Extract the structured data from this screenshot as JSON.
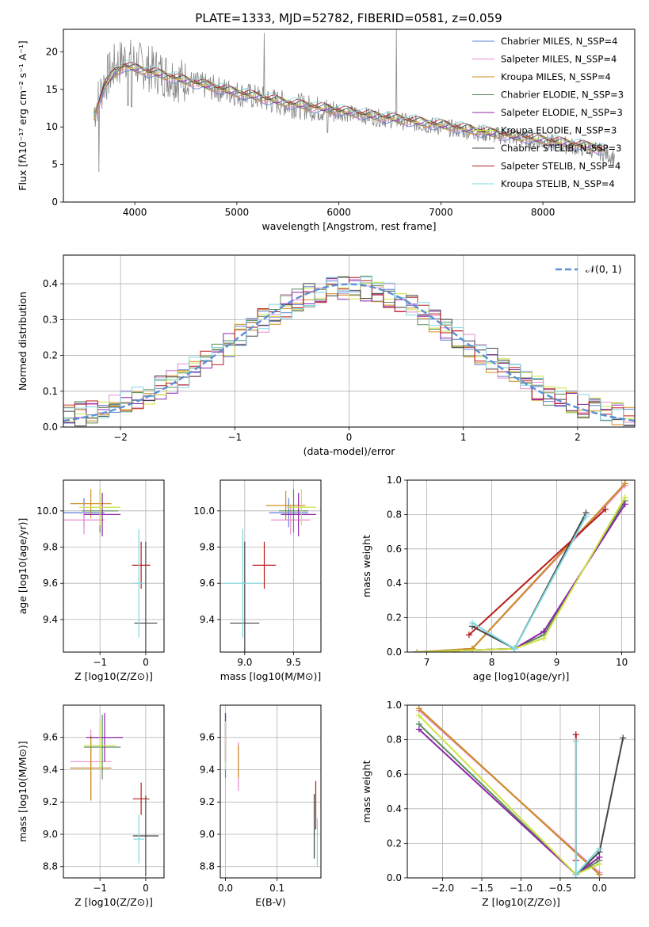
{
  "figure": {
    "title": "PLATE=1333, MJD=52782, FIBERID=0581, z=0.059"
  },
  "chart_data": [
    {
      "id": "spectrum",
      "type": "line",
      "xlabel": "wavelength [Angstrom, rest frame]",
      "ylabel": "Flux [fλ10⁻¹⁷ erg cm⁻² s⁻¹ A⁻¹]",
      "xlim": [
        3300,
        8900
      ],
      "ylim": [
        0,
        23
      ],
      "xticks": [
        4000,
        5000,
        6000,
        7000,
        8000
      ],
      "yticks": [
        0,
        5,
        10,
        15,
        20
      ],
      "grid": false,
      "legend_position": "top-right",
      "observed_envelope": {
        "x": [
          3600,
          3700,
          3800,
          3900,
          4000,
          4200,
          4500,
          5000,
          5500,
          6000,
          6500,
          7000,
          7500,
          8000,
          8500,
          8700
        ],
        "y": [
          12,
          16,
          18,
          19,
          18.5,
          17.5,
          16,
          14.5,
          13,
          12,
          11,
          10,
          9,
          8,
          7,
          6
        ]
      },
      "model_curve": {
        "x": [
          3600,
          3700,
          3800,
          3900,
          4000,
          4200,
          4500,
          5000,
          5500,
          6000,
          6500,
          7000,
          7500,
          8000,
          8500,
          8600
        ],
        "y": [
          11.5,
          15.5,
          17.2,
          18.2,
          17.8,
          17.2,
          16.2,
          14.6,
          13.2,
          12.2,
          11.2,
          10.3,
          9.2,
          8.3,
          7.3,
          6.9
        ]
      },
      "series": [
        {
          "name": "Chabrier MILES, N_SSP=4",
          "color": "#5b7fd4"
        },
        {
          "name": "Salpeter MILES, N_SSP=4",
          "color": "#e98bd1"
        },
        {
          "name": "Kroupa MILES, N_SSP=4",
          "color": "#d08d1e"
        },
        {
          "name": "Chabrier ELODIE, N_SSP=3",
          "color": "#5b8c5a"
        },
        {
          "name": "Salpeter ELODIE, N_SSP=3",
          "color": "#8e24aa"
        },
        {
          "name": "Kroupa ELODIE, N_SSP=3",
          "color": "#cde342"
        },
        {
          "name": "Chabrier STELIB, N_SSP=3",
          "color": "#444444"
        },
        {
          "name": "Salpeter STELIB, N_SSP=4",
          "color": "#b71c1c"
        },
        {
          "name": "Kroupa STELIB, N_SSP=4",
          "color": "#7fd8e0"
        }
      ]
    },
    {
      "id": "residuals",
      "type": "line",
      "xlabel": "(data-model)/error",
      "ylabel": "Normed distribution",
      "xlim": [
        -2.5,
        2.5
      ],
      "ylim": [
        0,
        0.48
      ],
      "xticks": [
        -2,
        -1,
        0,
        1,
        2
      ],
      "yticks": [
        0.0,
        0.1,
        0.2,
        0.3,
        0.4
      ],
      "grid": true,
      "legend_position": "top-right",
      "legend_label": "𝒩(0, 1)",
      "gaussian": {
        "x": [
          -2.5,
          -2,
          -1.5,
          -1,
          -0.5,
          0,
          0.5,
          1,
          1.5,
          2,
          2.5
        ],
        "y": [
          0.018,
          0.054,
          0.13,
          0.242,
          0.352,
          0.399,
          0.352,
          0.242,
          0.13,
          0.054,
          0.018
        ]
      }
    },
    {
      "id": "age-vs-Z",
      "type": "scatter",
      "xlabel": "Z [log10(Z/Z⊙)]",
      "ylabel": "age [log10(age/yr)]",
      "xticks": [
        -1,
        0
      ],
      "xlim": [
        -1.8,
        0.4
      ],
      "yticks": [
        9.4,
        9.6,
        9.8,
        10.0
      ],
      "ylim": [
        9.22,
        10.17
      ],
      "grid": true,
      "crosses": [
        {
          "color": "#5b7fd4",
          "x": -1.35,
          "xerr": 0.45,
          "y": 9.99,
          "yerr": 0.08
        },
        {
          "color": "#e98bd1",
          "x": -1.35,
          "xerr": 0.45,
          "y": 9.95,
          "yerr": 0.08
        },
        {
          "color": "#d08d1e",
          "x": -1.2,
          "xerr": 0.45,
          "y": 10.04,
          "yerr": 0.08
        },
        {
          "color": "#5b8c5a",
          "x": -1.0,
          "xerr": 0.4,
          "y": 10.0,
          "yerr": 0.12
        },
        {
          "color": "#8e24aa",
          "x": -0.95,
          "xerr": 0.4,
          "y": 9.98,
          "yerr": 0.12
        },
        {
          "color": "#cde342",
          "x": -1.0,
          "xerr": 0.45,
          "y": 10.02,
          "yerr": 0.1
        },
        {
          "color": "#444444",
          "x": 0.0,
          "xerr": 0.25,
          "y": 9.38,
          "yerr": 0.45
        },
        {
          "color": "#b71c1c",
          "x": -0.1,
          "xerr": 0.2,
          "y": 9.7,
          "yerr": 0.13
        },
        {
          "color": "#7fd8e0",
          "x": -0.15,
          "xerr": 0.12,
          "y": 9.6,
          "yerr": 0.3
        }
      ]
    },
    {
      "id": "age-vs-mass",
      "type": "scatter",
      "xlabel": "mass [log10(M/M⊙)]",
      "yticks": [
        9.4,
        9.6,
        9.8,
        10.0
      ],
      "ylim": [
        9.22,
        10.17
      ],
      "xticks": [
        9.0,
        9.5
      ],
      "xlim": [
        8.75,
        9.78
      ],
      "grid": true,
      "crosses": [
        {
          "color": "#5b7fd4",
          "x": 9.45,
          "xerr": 0.2,
          "y": 9.99,
          "yerr": 0.08
        },
        {
          "color": "#e98bd1",
          "x": 9.47,
          "xerr": 0.2,
          "y": 9.95,
          "yerr": 0.08
        },
        {
          "color": "#d08d1e",
          "x": 9.42,
          "xerr": 0.2,
          "y": 10.03,
          "yerr": 0.08
        },
        {
          "color": "#5b8c5a",
          "x": 9.5,
          "xerr": 0.15,
          "y": 10.0,
          "yerr": 0.12
        },
        {
          "color": "#8e24aa",
          "x": 9.55,
          "xerr": 0.18,
          "y": 9.98,
          "yerr": 0.12
        },
        {
          "color": "#cde342",
          "x": 9.58,
          "xerr": 0.15,
          "y": 10.02,
          "yerr": 0.1
        },
        {
          "color": "#444444",
          "x": 9.0,
          "xerr": 0.15,
          "y": 9.38,
          "yerr": 0.45
        },
        {
          "color": "#b71c1c",
          "x": 9.2,
          "xerr": 0.12,
          "y": 9.7,
          "yerr": 0.13
        },
        {
          "color": "#7fd8e0",
          "x": 8.98,
          "xerr": 0.2,
          "y": 9.6,
          "yerr": 0.3
        }
      ]
    },
    {
      "id": "massweight-vs-age",
      "type": "line",
      "xlabel": "age [log10(age/yr)]",
      "ylabel": "mass weight",
      "xticks": [
        7,
        8,
        9,
        10
      ],
      "xlim": [
        6.7,
        10.2
      ],
      "yticks": [
        0.0,
        0.2,
        0.4,
        0.6,
        0.8,
        1.0
      ],
      "ylim": [
        0,
        1
      ],
      "grid": true,
      "series": [
        {
          "color": "#5b7fd4",
          "x": [
            6.85,
            7.7,
            10.05
          ],
          "y": [
            0.0,
            0.02,
            0.98
          ]
        },
        {
          "color": "#e98bd1",
          "x": [
            6.85,
            7.7,
            10.05
          ],
          "y": [
            0.0,
            0.02,
            0.97
          ]
        },
        {
          "color": "#d08d1e",
          "x": [
            6.85,
            7.7,
            10.05
          ],
          "y": [
            0.0,
            0.02,
            0.98
          ]
        },
        {
          "color": "#5b8c5a",
          "x": [
            6.85,
            8.35,
            8.8,
            10.05
          ],
          "y": [
            0.0,
            0.02,
            0.1,
            0.88
          ]
        },
        {
          "color": "#8e24aa",
          "x": [
            6.85,
            8.35,
            8.8,
            10.05
          ],
          "y": [
            0.0,
            0.02,
            0.12,
            0.86
          ]
        },
        {
          "color": "#cde342",
          "x": [
            6.85,
            8.35,
            8.8,
            10.05
          ],
          "y": [
            0.0,
            0.02,
            0.08,
            0.9
          ]
        },
        {
          "color": "#444444",
          "x": [
            7.7,
            8.35,
            9.45
          ],
          "y": [
            0.15,
            0.02,
            0.81
          ]
        },
        {
          "color": "#b71c1c",
          "x": [
            7.65,
            9.75
          ],
          "y": [
            0.1,
            0.83
          ]
        },
        {
          "color": "#7fd8e0",
          "x": [
            7.7,
            8.35,
            9.45
          ],
          "y": [
            0.17,
            0.02,
            0.79
          ]
        }
      ]
    },
    {
      "id": "mass-vs-Z",
      "type": "scatter",
      "xlabel": "Z [log10(Z/Z⊙)]",
      "ylabel": "mass [log10(M/M⊙)]",
      "xticks": [
        -1,
        0
      ],
      "xlim": [
        -1.8,
        0.4
      ],
      "yticks": [
        8.8,
        9.0,
        9.2,
        9.4,
        9.6
      ],
      "ylim": [
        8.73,
        9.8
      ],
      "grid": true,
      "crosses": [
        {
          "color": "#5b7fd4",
          "x": -1.2,
          "xerr": 0.45,
          "y": 9.41,
          "yerr": 0.2
        },
        {
          "color": "#e98bd1",
          "x": -1.2,
          "xerr": 0.45,
          "y": 9.45,
          "yerr": 0.2
        },
        {
          "color": "#d08d1e",
          "x": -1.2,
          "xerr": 0.45,
          "y": 9.41,
          "yerr": 0.2
        },
        {
          "color": "#5b8c5a",
          "x": -0.95,
          "xerr": 0.4,
          "y": 9.54,
          "yerr": 0.2
        },
        {
          "color": "#8e24aa",
          "x": -0.9,
          "xerr": 0.4,
          "y": 9.6,
          "yerr": 0.15
        },
        {
          "color": "#cde342",
          "x": -1.0,
          "xerr": 0.35,
          "y": 9.55,
          "yerr": 0.15
        },
        {
          "color": "#444444",
          "x": 0.0,
          "xerr": 0.28,
          "y": 8.99,
          "yerr": 0.25
        },
        {
          "color": "#b71c1c",
          "x": -0.1,
          "xerr": 0.18,
          "y": 9.22,
          "yerr": 0.1
        },
        {
          "color": "#7fd8e0",
          "x": -0.15,
          "xerr": 0.12,
          "y": 8.97,
          "yerr": 0.15
        }
      ]
    },
    {
      "id": "mass-vs-EBV",
      "type": "scatter",
      "xlabel": "E(B-V)",
      "xticks": [
        0.0,
        0.1
      ],
      "xlim": [
        -0.01,
        0.185
      ],
      "yticks": [
        8.8,
        9.0,
        9.2,
        9.4,
        9.6
      ],
      "ylim": [
        8.73,
        9.8
      ],
      "grid": true,
      "crosses": [
        {
          "color": "#5b7fd4",
          "x": 0.0,
          "xerr": 0.0,
          "y": 9.55,
          "yerr": 0.2
        },
        {
          "color": "#e98bd1",
          "x": 0.025,
          "xerr": 0.0,
          "y": 9.42,
          "yerr": 0.15
        },
        {
          "color": "#d08d1e",
          "x": 0.025,
          "xerr": 0.0,
          "y": 9.45,
          "yerr": 0.1
        },
        {
          "color": "#5b8c5a",
          "x": 0.0,
          "xerr": 0.0,
          "y": 9.6,
          "yerr": 0.15
        },
        {
          "color": "#8e24aa",
          "x": 0.0,
          "xerr": 0.0,
          "y": 9.6,
          "yerr": 0.15
        },
        {
          "color": "#cde342",
          "x": 0.0,
          "xerr": 0.0,
          "y": 9.55,
          "yerr": 0.15
        },
        {
          "color": "#444444",
          "x": 0.172,
          "xerr": 0.0,
          "y": 9.05,
          "yerr": 0.2
        },
        {
          "color": "#b71c1c",
          "x": 0.175,
          "xerr": 0.0,
          "y": 9.18,
          "yerr": 0.15
        },
        {
          "color": "#7fd8e0",
          "x": 0.178,
          "xerr": 0.0,
          "y": 8.95,
          "yerr": 0.15
        }
      ]
    },
    {
      "id": "massweight-vs-Z",
      "type": "line",
      "xlabel": "Z [log10(Z/Z⊙)]",
      "ylabel": "mass weight",
      "xticks": [
        -2.0,
        -1.5,
        -1.0,
        -0.5,
        0.0
      ],
      "xlim": [
        -2.45,
        0.45
      ],
      "yticks": [
        0.0,
        0.2,
        0.4,
        0.6,
        0.8,
        1.0
      ],
      "ylim": [
        0,
        1
      ],
      "grid": true,
      "series": [
        {
          "color": "#5b7fd4",
          "x": [
            -2.3,
            0.0
          ],
          "y": [
            0.98,
            0.02
          ]
        },
        {
          "color": "#e98bd1",
          "x": [
            -2.3,
            0.0
          ],
          "y": [
            0.97,
            0.03
          ]
        },
        {
          "color": "#d08d1e",
          "x": [
            -2.3,
            0.0
          ],
          "y": [
            0.98,
            0.02
          ]
        },
        {
          "color": "#5b8c5a",
          "x": [
            -2.3,
            -0.3,
            0.0
          ],
          "y": [
            0.89,
            0.02,
            0.1
          ]
        },
        {
          "color": "#8e24aa",
          "x": [
            -2.3,
            -0.3,
            0.0
          ],
          "y": [
            0.86,
            0.02,
            0.12
          ]
        },
        {
          "color": "#cde342",
          "x": [
            -2.3,
            -0.3,
            0.0
          ],
          "y": [
            0.94,
            0.02,
            0.08
          ]
        },
        {
          "color": "#444444",
          "x": [
            -0.3,
            0.0,
            0.3
          ],
          "y": [
            0.02,
            0.15,
            0.81
          ]
        },
        {
          "color": "#b71c1c",
          "x": [
            -0.3,
            -0.3
          ],
          "y": [
            0.1,
            0.83
          ]
        },
        {
          "color": "#7fd8e0",
          "x": [
            -0.3,
            -0.3,
            0.0
          ],
          "y": [
            0.79,
            0.02,
            0.17
          ]
        }
      ]
    }
  ]
}
